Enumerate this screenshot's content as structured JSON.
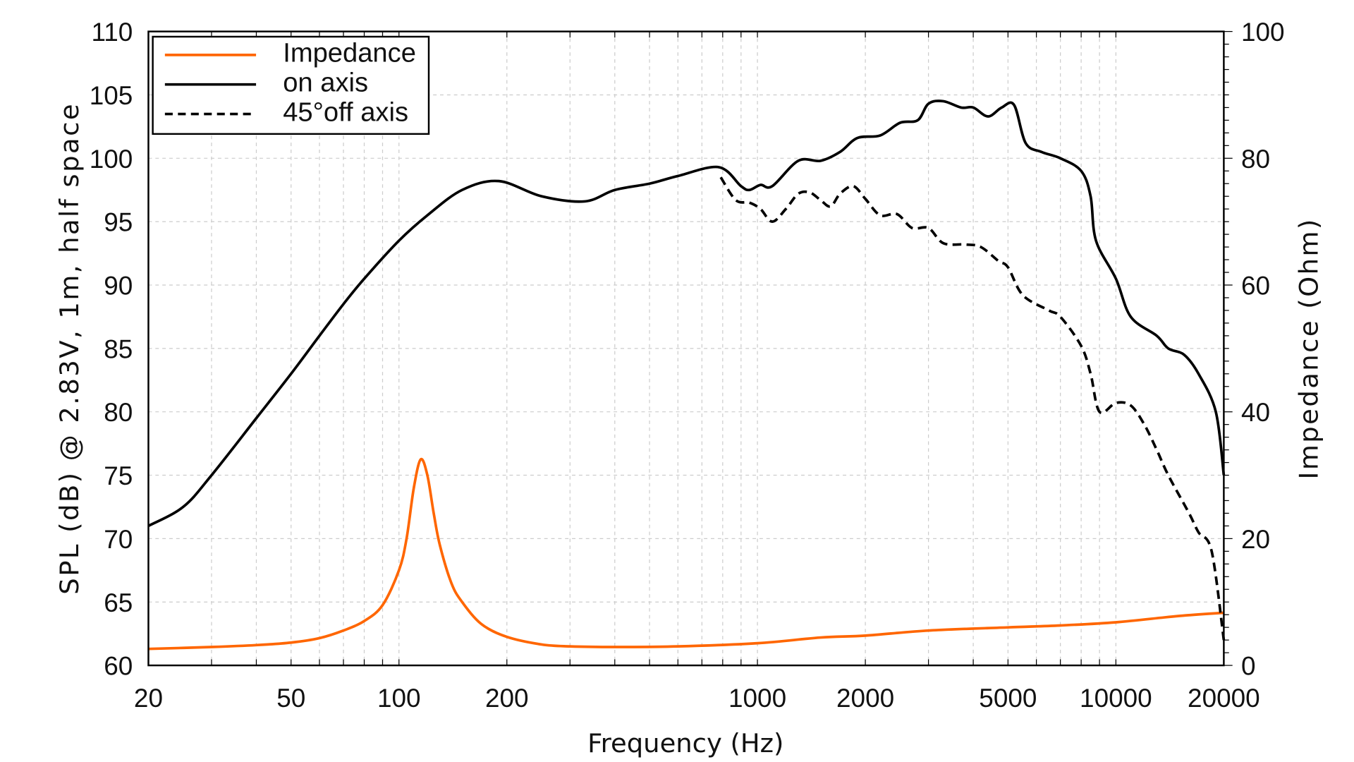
{
  "chart_data": {
    "type": "line",
    "xlabel": "Frequency (Hz)",
    "ylabel": "SPL (dB) @ 2.83V, 1m, half space",
    "y2label": "Impedance (Ohm)",
    "xscale": "log",
    "xlim": [
      20,
      20000
    ],
    "ylim": [
      60,
      110
    ],
    "y2lim": [
      0,
      100
    ],
    "xticks": [
      20,
      50,
      100,
      200,
      1000,
      2000,
      5000,
      10000,
      20000
    ],
    "yticks": [
      60,
      65,
      70,
      75,
      80,
      85,
      90,
      95,
      100,
      105,
      110
    ],
    "y2ticks": [
      0,
      20,
      40,
      60,
      80,
      100
    ],
    "grid": true,
    "legend_position": "top-left",
    "series": [
      {
        "name": "Impedance",
        "axis": "right",
        "color": "#ff6600",
        "style": "solid",
        "x": [
          20,
          30,
          40,
          50,
          60,
          70,
          80,
          90,
          100,
          105,
          110,
          115,
          120,
          125,
          130,
          140,
          150,
          170,
          200,
          250,
          300,
          400,
          600,
          1000,
          1500,
          2000,
          3000,
          5000,
          7000,
          10000,
          15000,
          20000
        ],
        "y": [
          2.6,
          2.9,
          3.2,
          3.6,
          4.3,
          5.5,
          7,
          9.5,
          15,
          20,
          28,
          32.5,
          30,
          24,
          19,
          13,
          10,
          6.5,
          4.5,
          3.3,
          3,
          2.9,
          3,
          3.5,
          4.4,
          4.7,
          5.5,
          6,
          6.3,
          6.8,
          7.8,
          8.3
        ]
      },
      {
        "name": "on axis",
        "axis": "left",
        "color": "#000000",
        "style": "solid",
        "x": [
          20,
          25,
          30,
          40,
          50,
          60,
          70,
          80,
          100,
          120,
          150,
          190,
          250,
          330,
          400,
          500,
          600,
          780,
          900,
          950,
          1020,
          1100,
          1300,
          1500,
          1700,
          1900,
          2200,
          2500,
          2800,
          3000,
          3300,
          3700,
          4000,
          4400,
          4800,
          5200,
          5600,
          6200,
          7000,
          8000,
          8500,
          8800,
          10000,
          11000,
          13000,
          14000,
          15500,
          17000,
          19000,
          20000
        ],
        "y": [
          71,
          72.5,
          75,
          79.5,
          83,
          86,
          88.5,
          90.5,
          93.5,
          95.5,
          97.5,
          98.2,
          97,
          96.6,
          97.5,
          98,
          98.6,
          99.3,
          97.8,
          97.5,
          97.9,
          97.8,
          99.8,
          99.8,
          100.5,
          101.6,
          101.8,
          102.8,
          103,
          104.3,
          104.5,
          104,
          104,
          103.3,
          104,
          104.2,
          101.2,
          100.5,
          100,
          99,
          97,
          93.5,
          90.5,
          87.5,
          86,
          85,
          84.5,
          83,
          80,
          75
        ]
      },
      {
        "name": "45°off axis",
        "axis": "left",
        "color": "#000000",
        "style": "dashed",
        "x": [
          790,
          870,
          950,
          1020,
          1100,
          1200,
          1300,
          1400,
          1500,
          1600,
          1700,
          1850,
          2000,
          2200,
          2450,
          2700,
          3000,
          3300,
          3800,
          4200,
          4700,
          5000,
          5500,
          6500,
          7000,
          8000,
          8500,
          9000,
          10000,
          11000,
          12000,
          13000,
          14000,
          16000,
          17000,
          18500,
          20000
        ],
        "y": [
          98.5,
          96.7,
          96.5,
          96,
          95,
          96,
          97.2,
          97.3,
          96.7,
          96.2,
          97.2,
          97.8,
          96.8,
          95.5,
          95.6,
          94.5,
          94.5,
          93.3,
          93.2,
          93,
          91.9,
          91.4,
          89.2,
          88,
          87.5,
          85.2,
          83,
          80,
          80.7,
          80.5,
          79,
          77,
          75,
          72,
          70.5,
          69,
          62
        ]
      }
    ]
  }
}
